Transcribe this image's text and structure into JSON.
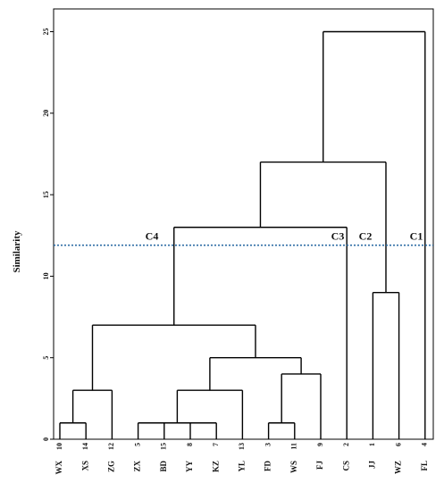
{
  "chart_data": {
    "type": "dendrogram",
    "title": "",
    "xlabel": "",
    "ylabel": "Similarity",
    "ylim": [
      0,
      25
    ],
    "yticks": [
      0,
      5,
      10,
      15,
      20,
      25
    ],
    "grid": false,
    "legend": "none",
    "leaves": [
      {
        "num": "10",
        "name": "WX"
      },
      {
        "num": "14",
        "name": "XS"
      },
      {
        "num": "12",
        "name": "ZG"
      },
      {
        "num": "5",
        "name": "ZX"
      },
      {
        "num": "15",
        "name": "BD"
      },
      {
        "num": "8",
        "name": "YY"
      },
      {
        "num": "7",
        "name": "KZ"
      },
      {
        "num": "13",
        "name": "YL"
      },
      {
        "num": "3",
        "name": "FD"
      },
      {
        "num": "11",
        "name": "WS"
      },
      {
        "num": "9",
        "name": "FJ"
      },
      {
        "num": "2",
        "name": "CS"
      },
      {
        "num": "1",
        "name": "JJ"
      },
      {
        "num": "6",
        "name": "WZ"
      },
      {
        "num": "4",
        "name": "FL"
      }
    ],
    "merges": [
      {
        "left": 0,
        "right": 1,
        "height": 1
      },
      {
        "left": 3,
        "right": 4,
        "height": 1
      },
      {
        "left": 5,
        "right": 6,
        "height": 1
      },
      {
        "left": 8,
        "right": 9,
        "height": 1
      },
      {
        "left": 15,
        "right": 2,
        "height": 3
      },
      {
        "left": 16,
        "right": 17,
        "height": 1
      },
      {
        "left": 20,
        "right": 7,
        "height": 3
      },
      {
        "left": 18,
        "right": 10,
        "height": 4
      },
      {
        "left": 12,
        "right": 13,
        "height": 9
      },
      {
        "left": 21,
        "right": 22,
        "height": 5
      },
      {
        "left": 19,
        "right": 24,
        "height": 7
      },
      {
        "left": 25,
        "right": 11,
        "height": 13
      },
      {
        "left": 26,
        "right": 23,
        "height": 17
      },
      {
        "left": 27,
        "right": 14,
        "height": 25
      }
    ],
    "cut_line": {
      "value": 11.9,
      "color": "#2e6da4",
      "style": "dotted"
    },
    "cluster_labels": [
      "C4",
      "C3",
      "C2",
      "C1"
    ]
  }
}
